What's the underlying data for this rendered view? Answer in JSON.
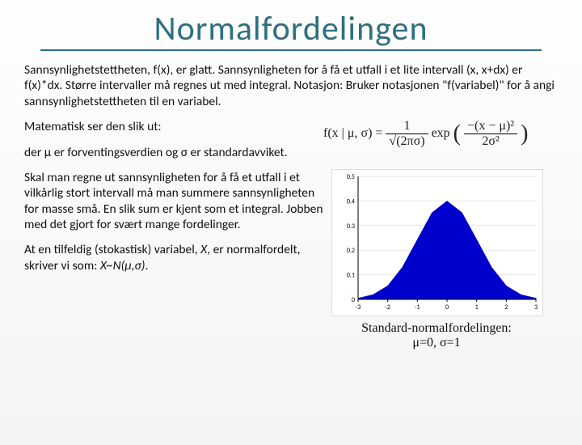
{
  "title": "Normalfordelingen",
  "para1": "Sannsynlighetstettheten, f(x), er glatt. Sannsynligheten for å få et utfall i et lite intervall (x, x+dx) er f(x)*dx. Større intervaller må regnes ut med integral. Notasjon: Bruker notasjonen \"f(variabel)\" for å angi sannsynlighetstettheten til en variabel.",
  "para2": "Matematisk ser den slik ut:",
  "para3": "der μ er forventingsverdien og σ er standardavviket.",
  "para4": "Skal man regne ut sannsynligheten for å få et utfall i et vilkårlig stort intervall må man summere sannsynligheten for masse små. En slik sum er kjent som et integral. Jobben med det gjort for svært mange fordelinger.",
  "para5_a": "At en tilfeldig (stokastisk) variabel, ",
  "para5_b": "X",
  "para5_c": ", er normalfordelt, skriver vi som: ",
  "para5_d": "X~N(μ,σ)",
  "para5_e": ".",
  "formula": {
    "lhs": "f(x | μ, σ) = ",
    "frac1_num": "1",
    "frac1_den": "√(2πσ)",
    "mid": " exp",
    "frac2_num": "−(x − μ)²",
    "frac2_den": "2σ²"
  },
  "chart": {
    "type": "area",
    "fill_color": "#0000cc",
    "background_color": "#ffffff",
    "axis_color": "#000000",
    "grid_color": "#cccccc",
    "xlim": [
      -3,
      3
    ],
    "ylim": [
      0,
      0.5
    ],
    "xticks": [
      -3,
      -2,
      -1,
      0,
      1,
      2,
      3
    ],
    "yticks": [
      0,
      0.1,
      0.2,
      0.3,
      0.4,
      0.5
    ],
    "axis_fontsize": 8,
    "label_fontsize": 8,
    "line_width": 1,
    "x_values": [
      -3,
      -2.5,
      -2,
      -1.5,
      -1,
      -0.5,
      0,
      0.5,
      1,
      1.5,
      2,
      2.5,
      3
    ],
    "y_values": [
      0.004,
      0.018,
      0.054,
      0.13,
      0.242,
      0.352,
      0.399,
      0.352,
      0.242,
      0.13,
      0.054,
      0.018,
      0.004
    ]
  },
  "caption_a": "Standard-normalfordelingen:",
  "caption_b": "μ=0, σ=1"
}
